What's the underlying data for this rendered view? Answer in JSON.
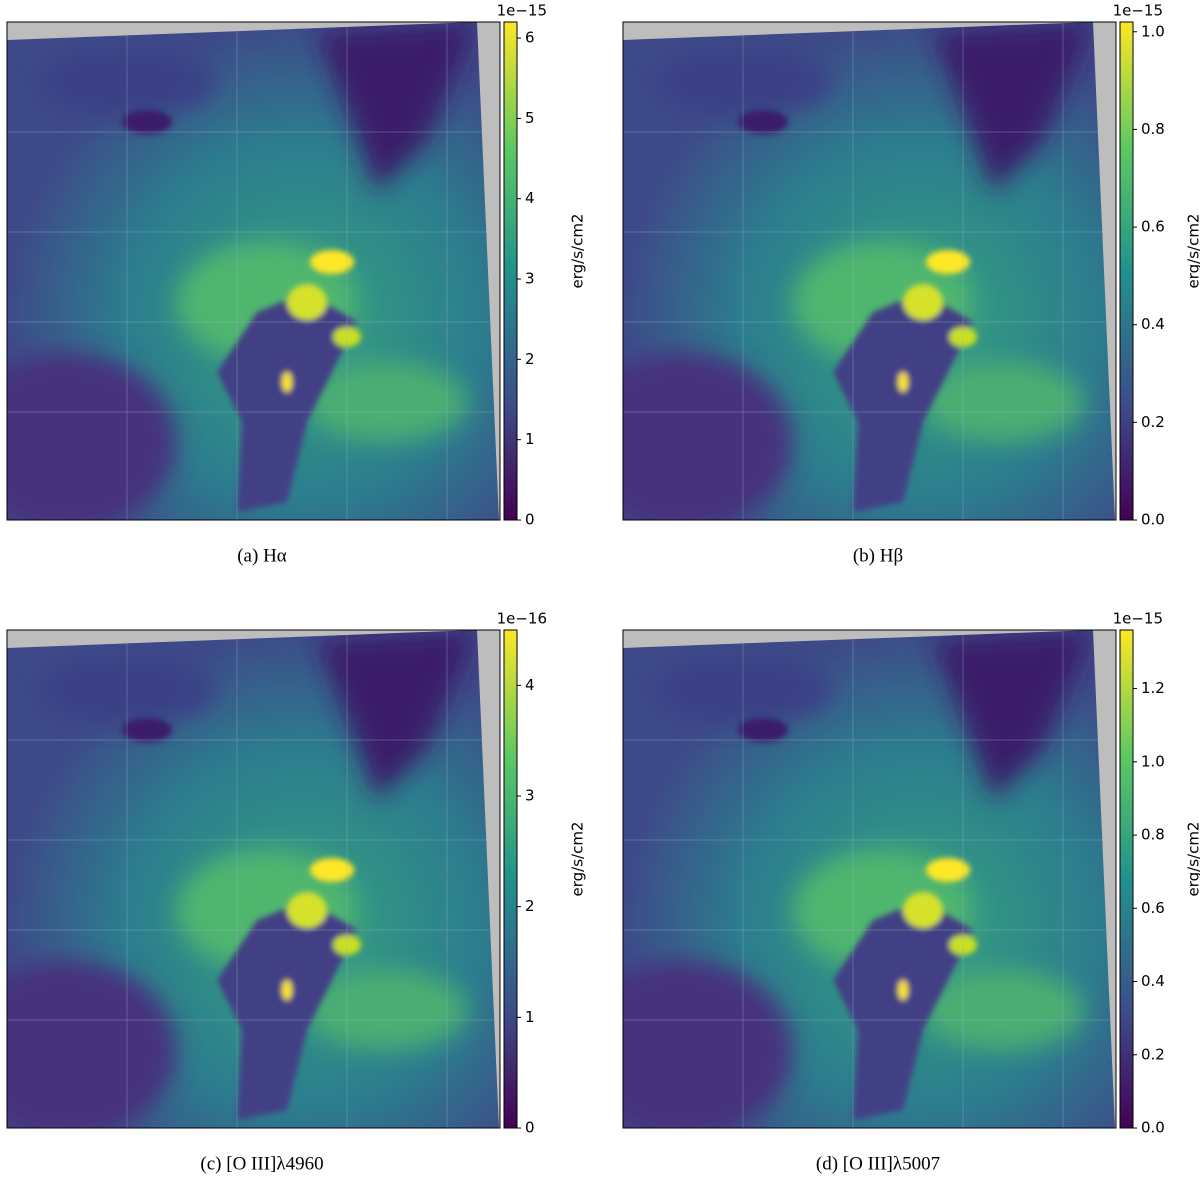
{
  "panels": [
    {
      "caption": "(a) Hα",
      "colorbar_label": "erg/s/cm2",
      "offset_text": "1e−15",
      "lim": [
        0,
        6.2
      ],
      "ticks": [
        0,
        1,
        2,
        3,
        4,
        5,
        6
      ]
    },
    {
      "caption": "(b) Hβ",
      "colorbar_label": "erg/s/cm2",
      "offset_text": "1e−15",
      "lim": [
        0,
        1.02
      ],
      "ticks": [
        {
          "value": 0,
          "label": "0.0"
        },
        0.2,
        0.4,
        0.6,
        0.8,
        {
          "value": 1,
          "label": "1.0"
        }
      ]
    },
    {
      "caption": "(c) [O III]λ4960",
      "colorbar_label": "erg/s/cm2",
      "offset_text": "1e−16",
      "lim": [
        0,
        4.5
      ],
      "ticks": [
        0,
        1,
        2,
        3,
        4
      ]
    },
    {
      "caption": "(d) [O III]λ5007",
      "colorbar_label": "erg/s/cm2",
      "offset_text": "1e−15",
      "lim": [
        0,
        1.36
      ],
      "ticks": [
        {
          "value": 0,
          "label": "0.0"
        },
        0.2,
        0.4,
        0.6,
        0.8,
        {
          "value": 1,
          "label": "1.0"
        },
        1.2
      ]
    }
  ]
}
